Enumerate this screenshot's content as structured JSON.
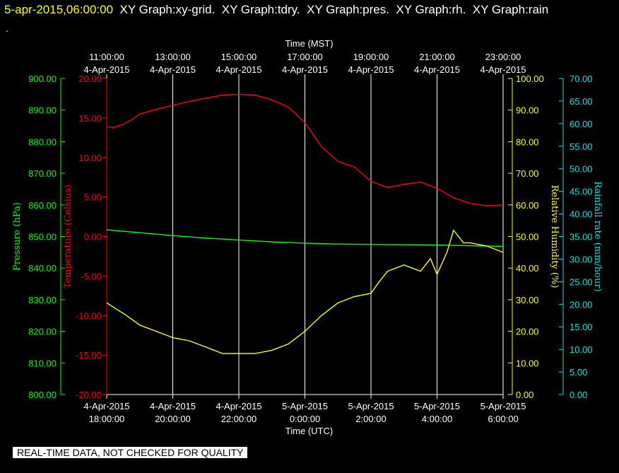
{
  "header": {
    "timestamp": "5-apr-2015,06:00:00",
    "graphs": [
      "XY Graph:xy-grid.",
      "XY Graph:tdry.",
      "XY Graph:pres.",
      "XY Graph:rh.",
      "XY Graph:rain"
    ],
    "dot": "."
  },
  "footer": {
    "notice": "REAL-TIME DATA, NOT CHECKED FOR QUALITY"
  },
  "colors": {
    "pressure": "#00ff00",
    "temperature": "#ff0000",
    "humidity": "#ffff00",
    "rain": "#00e5e5",
    "grid": "#ffffff",
    "background": "#000000"
  },
  "chart_data": {
    "type": "line",
    "top_axis": {
      "label": "Time (MST)",
      "ticks": [
        [
          "11:00:00",
          "4-Apr-2015"
        ],
        [
          "13:00:00",
          "4-Apr-2015"
        ],
        [
          "15:00:00",
          "4-Apr-2015"
        ],
        [
          "17:00:00",
          "4-Apr-2015"
        ],
        [
          "19:00:00",
          "4-Apr-2015"
        ],
        [
          "21:00:00",
          "4-Apr-2015"
        ],
        [
          "23:00:00",
          "4-Apr-2015"
        ]
      ]
    },
    "bottom_axis": {
      "label": "Time (UTC)",
      "ticks": [
        [
          "4-Apr-2015",
          "18:00:00"
        ],
        [
          "4-Apr-2015",
          "20:00:00"
        ],
        [
          "4-Apr-2015",
          "22:00:00"
        ],
        [
          "5-Apr-2015",
          "0:00:00"
        ],
        [
          "5-Apr-2015",
          "2:00:00"
        ],
        [
          "5-Apr-2015",
          "4:00:00"
        ],
        [
          "5-Apr-2015",
          "6:00:00"
        ]
      ]
    },
    "xlim_hours": [
      0,
      12
    ],
    "grid": "vertical",
    "y_axes": {
      "pressure": {
        "label": "Pressure (hPa)",
        "ylim": [
          800,
          900
        ],
        "ticks": [
          "900.00",
          "890.00",
          "880.00",
          "870.00",
          "860.00",
          "850.00",
          "840.00",
          "830.00",
          "820.00",
          "810.00",
          "800.00"
        ]
      },
      "temperature": {
        "label": "Temperature (Celsius)",
        "ylim": [
          -20,
          20
        ],
        "ticks": [
          "20.00",
          "15.00",
          "10.00",
          "5.00",
          "0.00",
          "-5.00",
          "-10.00",
          "-15.00",
          "-20.00"
        ]
      },
      "humidity": {
        "label": "Relative Humidity (%)",
        "ylim": [
          0,
          100
        ],
        "ticks": [
          "100.00",
          "90.00",
          "80.00",
          "70.00",
          "60.00",
          "50.00",
          "40.00",
          "30.00",
          "20.00",
          "10.00",
          "0.00"
        ]
      },
      "rain": {
        "label": "Rainfall rate (mm/hour)",
        "ylim": [
          0,
          70
        ],
        "ticks": [
          "70.00",
          "65.00",
          "60.00",
          "55.00",
          "50.00",
          "45.00",
          "40.00",
          "35.00",
          "30.00",
          "25.00",
          "20.00",
          "15.00",
          "10.00",
          "5.00",
          "0.00"
        ]
      }
    },
    "series": [
      {
        "axis": "temperature",
        "x": [
          0,
          0.2,
          0.5,
          0.8,
          1,
          1.5,
          2,
          2.5,
          3,
          3.5,
          4,
          4.5,
          5,
          5.5,
          6,
          6.5,
          7,
          7.5,
          8,
          8.5,
          9,
          9.5,
          10,
          10.5,
          11,
          11.5,
          12
        ],
        "y": [
          13.9,
          13.8,
          14.2,
          14.9,
          15.5,
          16.1,
          16.6,
          17.1,
          17.5,
          17.9,
          18.0,
          17.9,
          17.3,
          16.4,
          14.4,
          11.4,
          9.5,
          8.8,
          7.0,
          6.2,
          6.6,
          6.9,
          6.1,
          4.9,
          4.2,
          3.9,
          4.0
        ]
      },
      {
        "axis": "pressure",
        "x": [
          0,
          1,
          2,
          3,
          4,
          5,
          6,
          7,
          8,
          9,
          10,
          11,
          12
        ],
        "y": [
          852.1,
          851.2,
          850.3,
          849.5,
          848.9,
          848.3,
          847.9,
          847.6,
          847.5,
          847.4,
          847.3,
          847.1,
          846.9
        ]
      },
      {
        "axis": "humidity",
        "x": [
          0,
          0.3,
          0.6,
          1,
          1.5,
          2,
          2.5,
          3,
          3.5,
          4,
          4.5,
          5,
          5.5,
          6,
          6.5,
          7,
          7.5,
          8,
          8.2,
          8.5,
          9,
          9.5,
          9.8,
          10,
          10.3,
          10.5,
          10.8,
          11,
          11.5,
          12
        ],
        "y": [
          29,
          27,
          25,
          22,
          20,
          18,
          17,
          15,
          13,
          13,
          13,
          14,
          16,
          20,
          25,
          29,
          31,
          32,
          35,
          39,
          41,
          39,
          43,
          38,
          45,
          52,
          48,
          48,
          47,
          45
        ]
      }
    ]
  }
}
